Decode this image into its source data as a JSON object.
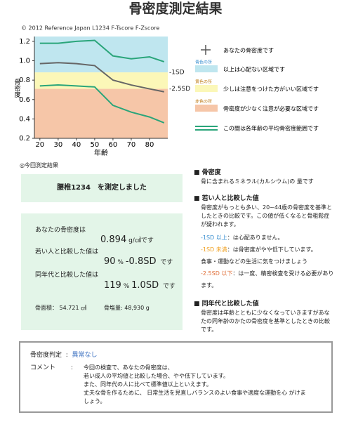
{
  "header": {
    "title": "骨密度測定結果",
    "copyright": "© 2012 Reference Japan L1234 F-Tscore F-Zscore"
  },
  "chart_data": {
    "type": "line",
    "x": [
      20,
      30,
      40,
      50,
      60,
      70,
      80,
      88
    ],
    "x_label": "年齢",
    "y_label": "骨密度",
    "xlim": [
      17,
      90
    ],
    "ylim": [
      0.2,
      1.25
    ],
    "xticks": [
      20,
      30,
      40,
      50,
      60,
      70,
      80
    ],
    "yticks": [
      0.2,
      0.4,
      0.6,
      0.8,
      {
        "value": 1,
        "label": "1.0"
      },
      1.2
    ],
    "series": [
      {
        "color": "#2aa57a",
        "values": [
          1.18,
          1.18,
          1.2,
          1.21,
          1.05,
          1.02,
          1.04,
          0.99
        ]
      },
      {
        "color": "#666666",
        "values": [
          0.97,
          0.98,
          0.97,
          0.95,
          0.8,
          0.75,
          0.71,
          0.68
        ]
      },
      {
        "color": "#2aa57a",
        "values": [
          0.74,
          0.75,
          0.74,
          0.73,
          0.54,
          0.47,
          0.42,
          0.36
        ]
      }
    ],
    "thresholds": [
      {
        "label": "-1SD",
        "value": 0.88
      },
      {
        "label": "-2.5SD",
        "value": 0.71
      }
    ],
    "zones": [
      {
        "color": "#bfe6ef",
        "note": "青色の所",
        "text": "以上は心配ない区域です"
      },
      {
        "color": "#fbf7b8",
        "note": "黄色の所",
        "text": "少しは注意をつけた方がいい区域です"
      },
      {
        "color": "#f6c6a8",
        "note": "赤色の所",
        "text": "骨密度が少なく注意が必要な区域です"
      }
    ],
    "legend_marker": "あなたの骨密度です",
    "legend_range": "この間は各年齢の平均骨密度範囲です"
  },
  "current": {
    "heading": "◎今回測定結果",
    "site": "腰椎1234　を測定しました",
    "results": [
      {
        "label": "あなたの骨密度は",
        "value": "0.894",
        "unit": "g/㎠です"
      },
      {
        "label": "若い人と比較した値は",
        "value": "90",
        "unit": "%",
        "sd": "-0.8SD",
        "suffix": "です"
      },
      {
        "label": "同年代と比較した値は",
        "value": "119",
        "unit": "%",
        "sd": "1.0SD",
        "suffix": "です"
      }
    ],
    "area": "骨面積： 54.721 ㎠",
    "mineral": "骨塩量: 48,930 g"
  },
  "notes": [
    {
      "heading": "■ 骨密度",
      "body": "骨に含まれるミネラル(カルシウム)の 量です"
    },
    {
      "heading": "■ 若い人と比較した値",
      "body": "骨密度がもっとも多い、20~44歳の骨密度を基準としたときの比較です。この値が低くなると骨粗鬆症が疑われます。",
      "levels": [
        {
          "label": "-1SD 以上",
          "text": "：は心配ありません。",
          "color": "#3a8fd0"
        },
        {
          "label": "-1SD 未満",
          "text": "：は骨密度がやや低下しています。",
          "color": "#f0a020"
        },
        {
          "text": "食事・運動などの生活に気をつけましょう"
        },
        {
          "label": "-2.5SD 以下",
          "text": "：は一度、精密検査を受ける必要があります。",
          "color": "#e0703a"
        }
      ]
    },
    {
      "heading": "■ 同年代と比較した値",
      "body": "骨密度は年齢とともに少なくなっていきますがあなたの同年齢のかたの骨密度を基準としたときの比較です。"
    }
  ],
  "judgement": {
    "label": "骨密度判定",
    "separator": ":",
    "value": "異常なし",
    "comment_label": "コメント",
    "comment_lines": [
      "今回の検査で、あなたの骨密度は、",
      "若い成人の平均値と比較した場合、やや低下しています。",
      "また、同年代の人に比べて標準値以上といえます。",
      "丈夫な骨を作るために、 日常生活を見直しバランスのよい食事や適度な運動を心 がけましょう。"
    ]
  }
}
